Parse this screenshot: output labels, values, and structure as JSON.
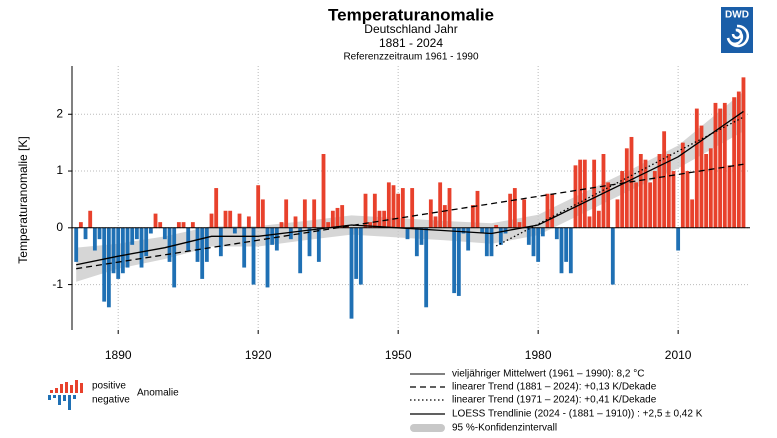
{
  "chart_data": {
    "type": "bar",
    "title": "Temperaturanomalie",
    "subtitle": [
      "Deutschland Jahr",
      "1881 - 2024",
      "Referenzzeitraum 1961 - 1990"
    ],
    "logo": "DWD",
    "ylabel": "Temperaturanomalie [K]",
    "x": [
      1881,
      1882,
      1883,
      1884,
      1885,
      1886,
      1887,
      1888,
      1889,
      1890,
      1891,
      1892,
      1893,
      1894,
      1895,
      1896,
      1897,
      1898,
      1899,
      1900,
      1901,
      1902,
      1903,
      1904,
      1905,
      1906,
      1907,
      1908,
      1909,
      1910,
      1911,
      1912,
      1913,
      1914,
      1915,
      1916,
      1917,
      1918,
      1919,
      1920,
      1921,
      1922,
      1923,
      1924,
      1925,
      1926,
      1927,
      1928,
      1929,
      1930,
      1931,
      1932,
      1933,
      1934,
      1935,
      1936,
      1937,
      1938,
      1939,
      1940,
      1941,
      1942,
      1943,
      1944,
      1945,
      1946,
      1947,
      1948,
      1949,
      1950,
      1951,
      1952,
      1953,
      1954,
      1955,
      1956,
      1957,
      1958,
      1959,
      1960,
      1961,
      1962,
      1963,
      1964,
      1965,
      1966,
      1967,
      1968,
      1969,
      1970,
      1971,
      1972,
      1973,
      1974,
      1975,
      1976,
      1977,
      1978,
      1979,
      1980,
      1981,
      1982,
      1983,
      1984,
      1985,
      1986,
      1987,
      1988,
      1989,
      1990,
      1991,
      1992,
      1993,
      1994,
      1995,
      1996,
      1997,
      1998,
      1999,
      2000,
      2001,
      2002,
      2003,
      2004,
      2005,
      2006,
      2007,
      2008,
      2009,
      2010,
      2011,
      2012,
      2013,
      2014,
      2015,
      2016,
      2017,
      2018,
      2019,
      2020,
      2021,
      2022,
      2023,
      2024
    ],
    "values": [
      -0.6,
      0.1,
      -0.2,
      0.3,
      -0.4,
      -0.2,
      -1.3,
      -1.4,
      -0.8,
      -0.9,
      -0.8,
      -0.7,
      -0.3,
      -0.2,
      -0.7,
      -0.5,
      -0.1,
      0.25,
      0.1,
      -0.2,
      -0.6,
      -1.05,
      0.1,
      0.1,
      -0.4,
      0.1,
      -0.6,
      -0.9,
      -0.6,
      0.25,
      0.7,
      -0.5,
      0.3,
      0.3,
      -0.1,
      0.25,
      -0.7,
      0.2,
      -1.0,
      0.75,
      0.5,
      -1.05,
      -0.3,
      -0.4,
      0.1,
      0.5,
      -0.2,
      0.2,
      -0.8,
      0.5,
      -0.5,
      0.5,
      -0.6,
      1.3,
      0.1,
      0.3,
      0.35,
      0.4,
      0.05,
      -1.6,
      -0.9,
      -1.0,
      0.6,
      0.1,
      0.6,
      0.3,
      0.3,
      0.8,
      0.75,
      0.6,
      0.7,
      -0.2,
      0.7,
      -0.5,
      -0.3,
      -1.4,
      0.5,
      0.2,
      0.8,
      0.4,
      0.7,
      -1.15,
      -1.2,
      -0.1,
      -0.4,
      0.4,
      0.65,
      -0.1,
      -0.5,
      -0.5,
      0.05,
      -0.3,
      -0.1,
      0.6,
      0.7,
      0.1,
      0.5,
      -0.3,
      -0.5,
      -0.6,
      -0.15,
      0.6,
      0.6,
      -0.2,
      -0.8,
      -0.6,
      -0.8,
      1.1,
      1.2,
      1.2,
      0.2,
      1.2,
      0.3,
      1.3,
      0.8,
      -1.0,
      0.5,
      1.0,
      1.4,
      1.6,
      0.8,
      1.3,
      1.2,
      0.8,
      1.0,
      1.3,
      1.7,
      1.3,
      1.0,
      -0.4,
      1.5,
      1.0,
      0.5,
      2.1,
      1.8,
      1.3,
      1.4,
      2.2,
      2.1,
      2.2,
      1.1,
      2.3,
      2.4,
      2.65
    ],
    "positive_color": "#e8412c",
    "negative_color": "#1f70b4",
    "xlim": [
      1880.1,
      2025.4
    ],
    "xticks": [
      1890,
      1920,
      1950,
      1980,
      2010
    ],
    "ylim": [
      -1.8,
      2.85
    ],
    "yticks": [
      -1,
      0,
      1,
      2
    ],
    "grid": true,
    "mean_line": {
      "name": "vieljähriger Mittelwert (1961 – 1990): 8,2 °C",
      "value": 0
    },
    "lines": [
      {
        "name": "linearer Trend (1881 – 2024): +0,13 K/Dekade",
        "style": "dashed",
        "x": [
          1881,
          2024
        ],
        "values": [
          -0.72,
          1.12
        ]
      },
      {
        "name": "linearer Trend (1971 – 2024): +0,41 K/Dekade",
        "style": "dotted",
        "x": [
          1971,
          2024
        ],
        "values": [
          -0.32,
          1.95
        ]
      },
      {
        "name": "LOESS Trendlinie (2024 - (1881 – 1910)) : +2,5 ± 0,42 K",
        "style": "solid",
        "x": [
          1881,
          1890,
          1900,
          1910,
          1920,
          1930,
          1940,
          1950,
          1960,
          1970,
          1980,
          1990,
          2000,
          2010,
          2024
        ],
        "values": [
          -0.65,
          -0.5,
          -0.35,
          -0.15,
          -0.15,
          -0.05,
          0.05,
          0.0,
          -0.05,
          -0.1,
          0.05,
          0.45,
          0.85,
          1.25,
          2.05
        ]
      }
    ],
    "band": {
      "name": "95 %-Konfidenzintervall",
      "x": [
        1881,
        1890,
        1900,
        1910,
        1920,
        1930,
        1940,
        1950,
        1960,
        1970,
        1980,
        1990,
        2000,
        2010,
        2024
      ],
      "lower": [
        -0.95,
        -0.72,
        -0.55,
        -0.33,
        -0.33,
        -0.22,
        -0.12,
        -0.17,
        -0.22,
        -0.28,
        -0.13,
        0.27,
        0.67,
        1.05,
        1.7
      ],
      "upper": [
        -0.35,
        -0.28,
        -0.15,
        0.03,
        0.03,
        0.12,
        0.22,
        0.17,
        0.12,
        0.08,
        0.23,
        0.63,
        1.03,
        1.45,
        2.4
      ]
    },
    "legend_anomaly": {
      "positive": "positive",
      "negative": "negative",
      "label": "Anomalie"
    }
  }
}
